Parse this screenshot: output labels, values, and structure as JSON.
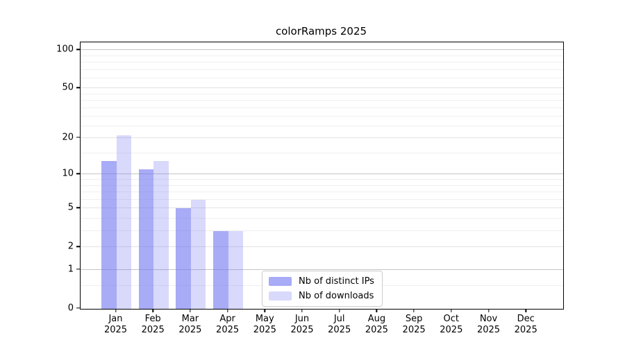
{
  "chart_data": {
    "type": "bar",
    "title": "colorRamps 2025",
    "year": "2025",
    "categories": [
      "Jan",
      "Feb",
      "Mar",
      "Apr",
      "May",
      "Jun",
      "Jul",
      "Aug",
      "Sep",
      "Oct",
      "Nov",
      "Dec"
    ],
    "series": [
      {
        "name": "Nb of distinct IPs",
        "color": "rgba(110,115,240,0.60)",
        "values": [
          13,
          11,
          5,
          3,
          0,
          0,
          0,
          0,
          0,
          0,
          0,
          0
        ]
      },
      {
        "name": "Nb of downloads",
        "color": "rgba(110,115,240,0.27)",
        "values": [
          21,
          13,
          6,
          3,
          0,
          0,
          0,
          0,
          0,
          0,
          0,
          0
        ]
      }
    ],
    "xlabel": "",
    "ylabel": "",
    "yscale": "log1p",
    "ylim": [
      0,
      115
    ],
    "y_ticks": [
      0,
      1,
      2,
      5,
      10,
      20,
      50,
      100
    ],
    "gridlines": {
      "major": [
        1,
        10,
        100
      ],
      "sub": [
        2,
        5,
        20,
        50
      ],
      "minor": [
        0.5,
        3,
        4,
        6,
        7,
        8,
        9,
        15,
        25,
        30,
        35,
        40,
        45,
        60,
        70,
        80,
        90
      ]
    },
    "grid": true,
    "legend_position": "inside-bottom-center"
  },
  "colors": {
    "bar_distinct_ips": "rgba(110,115,240,0.60)",
    "bar_downloads": "rgba(110,115,240,0.27)",
    "grid_major": "#c4c4c4",
    "grid_minor": "#efefef",
    "axis": "#000000",
    "legend_border": "#cccccc"
  }
}
